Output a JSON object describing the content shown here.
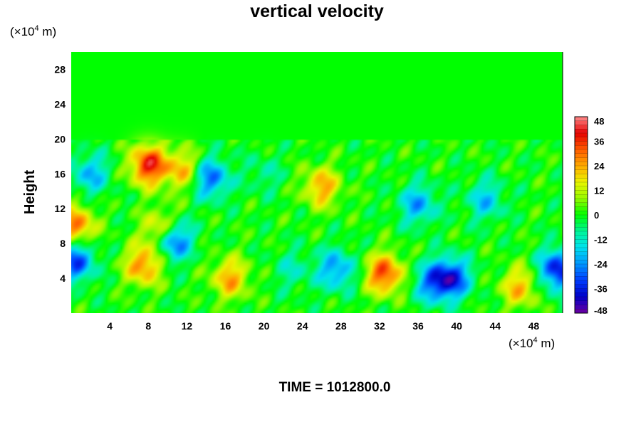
{
  "chart_data": {
    "type": "heatmap",
    "title": "vertical velocity",
    "ylabel": "Height",
    "xlabel": "",
    "y_unit_prefix": "(×10",
    "y_unit_exp": "4",
    "y_unit_suffix": " m)",
    "x_unit_prefix": "(×10",
    "x_unit_exp": "4",
    "x_unit_suffix": " m)",
    "xlim": [
      0,
      51
    ],
    "ylim": [
      0,
      30
    ],
    "x_ticks": [
      4,
      8,
      12,
      16,
      20,
      24,
      28,
      32,
      36,
      40,
      44,
      48
    ],
    "y_ticks": [
      4,
      8,
      12,
      16,
      20,
      24,
      28
    ],
    "x_tick_labels": [
      "4",
      "8",
      "12",
      "16",
      "20",
      "24",
      "28",
      "32",
      "36",
      "40",
      "44",
      "48"
    ],
    "y_tick_labels": [
      "4",
      "8",
      "12",
      "16",
      "20",
      "24",
      "28"
    ],
    "colorbar": {
      "min": -48,
      "max": 48,
      "ticks": [
        48,
        36,
        24,
        12,
        0,
        -12,
        -24,
        -36,
        -48
      ],
      "tick_labels": [
        "48",
        "36",
        "24",
        "12",
        "0",
        "-12",
        "-24",
        "-36",
        "-48"
      ]
    },
    "features": [
      {
        "x": 7.5,
        "y": 5.5,
        "value": 28
      },
      {
        "x": 8.0,
        "y": 17.0,
        "value": 38
      },
      {
        "x": 11.5,
        "y": 16.5,
        "value": 22
      },
      {
        "x": 10.5,
        "y": 8.5,
        "value": -40
      },
      {
        "x": 9.5,
        "y": 9.5,
        "value": 30
      },
      {
        "x": 16.5,
        "y": 4.0,
        "value": 24
      },
      {
        "x": 32.5,
        "y": 4.5,
        "value": 34
      },
      {
        "x": 39.5,
        "y": 4.0,
        "value": -34
      },
      {
        "x": 37.5,
        "y": 3.5,
        "value": -24
      },
      {
        "x": 46.5,
        "y": 3.0,
        "value": 22
      },
      {
        "x": 50.5,
        "y": 5.0,
        "value": -38
      },
      {
        "x": 0.5,
        "y": 6.0,
        "value": -32
      },
      {
        "x": 0.5,
        "y": 10.0,
        "value": 30
      },
      {
        "x": 27.5,
        "y": 5.0,
        "value": -24
      },
      {
        "x": 26.0,
        "y": 14.5,
        "value": 24
      },
      {
        "x": 14.5,
        "y": 15.5,
        "value": -28
      },
      {
        "x": 2.0,
        "y": 16.0,
        "value": -20
      },
      {
        "x": 36.0,
        "y": 12.5,
        "value": -22
      },
      {
        "x": 43.0,
        "y": 13.0,
        "value": -18
      },
      {
        "x": 23.0,
        "y": 5.0,
        "value": -10
      },
      {
        "x": 20.0,
        "y": 16.0,
        "value": -8
      }
    ]
  },
  "footer": {
    "time_label": "TIME = 1012800.0"
  }
}
